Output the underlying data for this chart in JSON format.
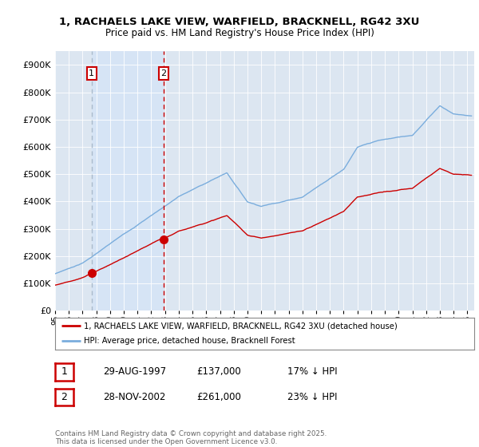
{
  "title": "1, RACHAELS LAKE VIEW, WARFIELD, BRACKNELL, RG42 3XU",
  "subtitle": "Price paid vs. HM Land Registry's House Price Index (HPI)",
  "ylim": [
    0,
    950000
  ],
  "yticks": [
    0,
    100000,
    200000,
    300000,
    400000,
    500000,
    600000,
    700000,
    800000,
    900000
  ],
  "ytick_labels": [
    "£0",
    "£100K",
    "£200K",
    "£300K",
    "£400K",
    "£500K",
    "£600K",
    "£700K",
    "£800K",
    "£900K"
  ],
  "sale1_year": 1997.66,
  "sale1_price": 137000,
  "sale2_year": 2002.91,
  "sale2_price": 261000,
  "sale_color": "#cc0000",
  "hpi_color": "#7aaddd",
  "vline1_color": "#aabbcc",
  "vline2_color": "#cc0000",
  "shade_color": "#d6e4f5",
  "background_color": "#dce6f1",
  "legend_label_sale": "1, RACHAELS LAKE VIEW, WARFIELD, BRACKNELL, RG42 3XU (detached house)",
  "legend_label_hpi": "HPI: Average price, detached house, Bracknell Forest",
  "table_row1": [
    "1",
    "29-AUG-1997",
    "£137,000",
    "17% ↓ HPI"
  ],
  "table_row2": [
    "2",
    "28-NOV-2002",
    "£261,000",
    "23% ↓ HPI"
  ],
  "footer": "Contains HM Land Registry data © Crown copyright and database right 2025.\nThis data is licensed under the Open Government Licence v3.0.",
  "xmin": 1995.0,
  "xmax": 2025.5
}
